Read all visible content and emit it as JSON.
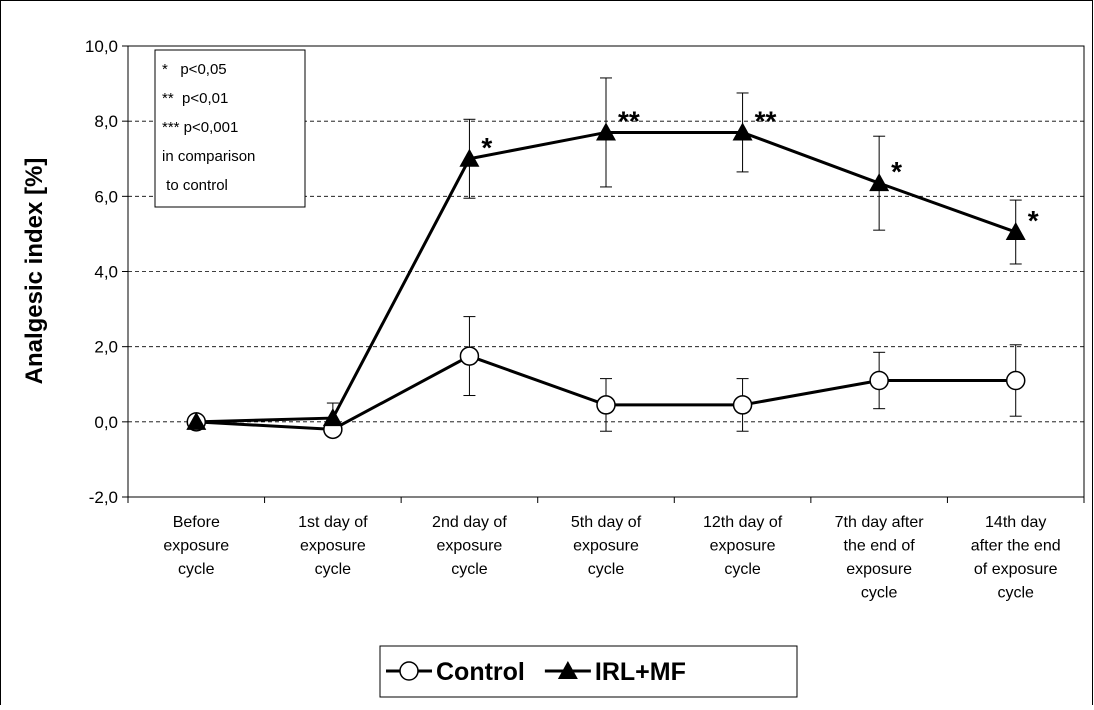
{
  "chart_data": {
    "type": "line",
    "ylabel": "Analgesic index [%]",
    "categories": [
      [
        "Before",
        "exposure",
        "cycle"
      ],
      [
        "1st day of",
        "exposure",
        "cycle"
      ],
      [
        "2nd day of",
        "exposure",
        "cycle"
      ],
      [
        "5th day of",
        "exposure",
        "cycle"
      ],
      [
        "12th day of",
        "exposure",
        "cycle"
      ],
      [
        "7th day after",
        "the end of",
        "exposure",
        "cycle"
      ],
      [
        "14th day",
        "after the end",
        "of exposure",
        "cycle"
      ]
    ],
    "series": [
      {
        "name": "Control",
        "color": "#000000",
        "marker": "circle",
        "values": [
          0,
          -0.2,
          1.75,
          0.45,
          0.45,
          1.1,
          1.1
        ],
        "errors": [
          0,
          0,
          1.05,
          0.7,
          0.7,
          0.75,
          0.95
        ]
      },
      {
        "name": "IRL+MF",
        "color": "#000000",
        "marker": "triangle",
        "values": [
          0,
          0.1,
          7.0,
          7.7,
          7.7,
          6.35,
          5.05
        ],
        "errors": [
          0,
          0.4,
          1.05,
          1.45,
          1.05,
          1.25,
          0.85
        ],
        "significance": [
          null,
          null,
          "*",
          "**",
          "**",
          "*",
          "*"
        ]
      }
    ],
    "note": [
      "*   p<0,05",
      "**  p<0,01",
      "*** p<0,001",
      "in comparison",
      " to control"
    ],
    "ylim": [
      -2,
      10
    ],
    "yticks": [
      {
        "value": -2,
        "label": "-2,0"
      },
      {
        "value": 0,
        "label": "0,0"
      },
      {
        "value": 2,
        "label": "2,0"
      },
      {
        "value": 4,
        "label": "4,0"
      },
      {
        "value": 6,
        "label": "6,0"
      },
      {
        "value": 8,
        "label": "8,0"
      },
      {
        "value": 10,
        "label": "10,0"
      }
    ],
    "grid": true
  }
}
